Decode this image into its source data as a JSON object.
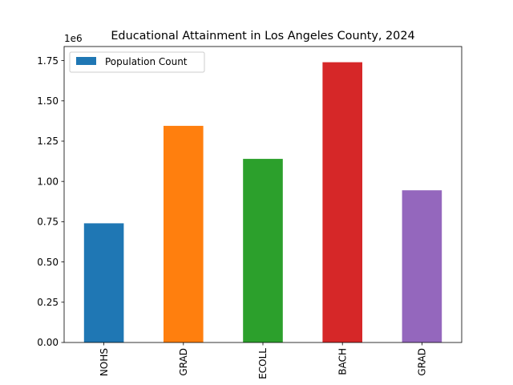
{
  "chart_data": {
    "type": "bar",
    "title": "Educational Attainment in Los Angeles County, 2024",
    "xlabel": "",
    "ylabel": "",
    "y_scale_label": "1e6",
    "categories": [
      "NOHS",
      "GRAD",
      "ECOLL",
      "BACH",
      "GRAD"
    ],
    "series": [
      {
        "name": "Population Count",
        "values": [
          740000,
          1345000,
          1140000,
          1740000,
          945000
        ]
      }
    ],
    "bar_colors": [
      "#1f77b4",
      "#ff7f0e",
      "#2ca02c",
      "#d62728",
      "#9467bd"
    ],
    "legend_color": "#1f77b4",
    "ylim": [
      0,
      1837500
    ],
    "yticks": [
      0,
      250000,
      500000,
      750000,
      1000000,
      1250000,
      1500000,
      1750000
    ],
    "ytick_labels": [
      "0.00",
      "0.25",
      "0.50",
      "0.75",
      "1.00",
      "1.25",
      "1.50",
      "1.75"
    ],
    "grid": false,
    "legend_position": "top-left"
  }
}
